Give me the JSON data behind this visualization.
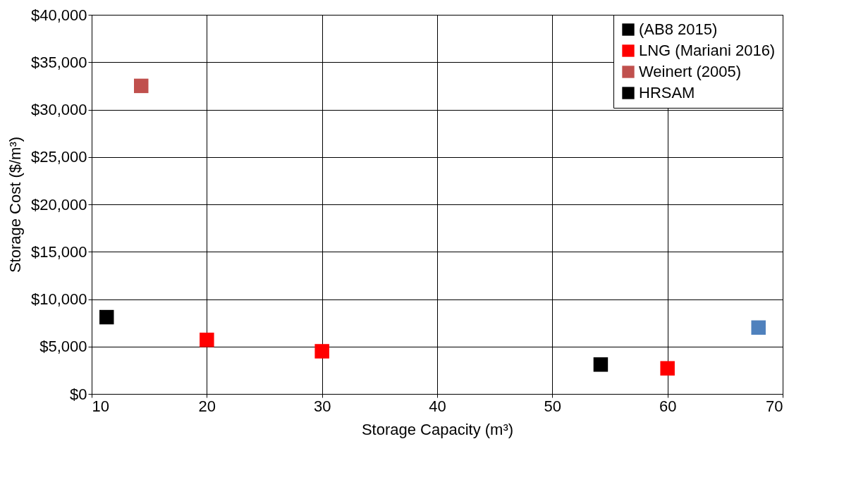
{
  "chart_data": {
    "type": "scatter",
    "xlabel": "Storage Capacity (m³)",
    "ylabel": "Storage Cost ($/m³)",
    "xlim": [
      10,
      70
    ],
    "xticks": [
      10,
      20,
      30,
      40,
      50,
      60,
      70
    ],
    "ylim": [
      0,
      40000
    ],
    "yticks": [
      {
        "value": 0,
        "label": "$0"
      },
      {
        "value": 5000,
        "label": "$5,000"
      },
      {
        "value": 10000,
        "label": "$10,000"
      },
      {
        "value": 15000,
        "label": "$15,000"
      },
      {
        "value": 20000,
        "label": "$20,000"
      },
      {
        "value": 25000,
        "label": "$25,000"
      },
      {
        "value": 30000,
        "label": "$30,000"
      },
      {
        "value": 35000,
        "label": "$35,000"
      },
      {
        "value": 40000,
        "label": "$40,000"
      }
    ],
    "grid": true,
    "legend": "top right",
    "marker": "square",
    "series": [
      {
        "name": "(AB8 2015)",
        "color": "#000000",
        "x": [
          11.3
        ],
        "values": [
          8100
        ]
      },
      {
        "name": "LNG (Mariani 2016)",
        "color": "#ff0000",
        "x": [
          20,
          30,
          60
        ],
        "values": [
          5700,
          4500,
          2700
        ]
      },
      {
        "name": "Weinert (2005)",
        "color": "#c0504d",
        "x": [
          14.3
        ],
        "values": [
          32500
        ]
      },
      {
        "name": "HRSAM",
        "color": "#000000",
        "x": [
          54.2
        ],
        "values": [
          3100
        ]
      },
      {
        "color": "#4f81bd",
        "x": [
          67.9
        ],
        "values": [
          7000
        ]
      }
    ]
  }
}
